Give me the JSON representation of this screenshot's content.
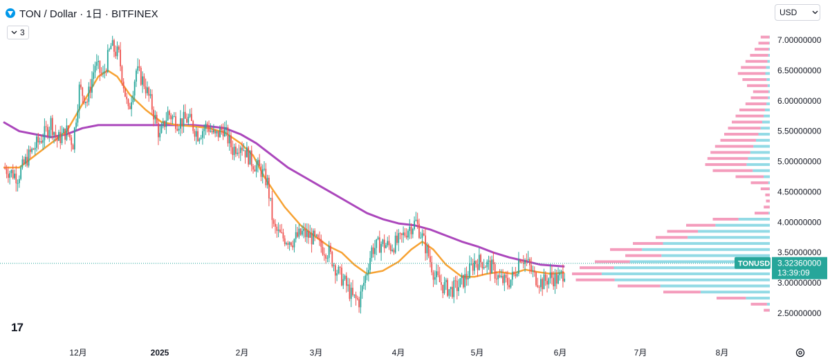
{
  "header": {
    "title": "TON / Dollar · 1日 · BITFINEX",
    "indicator_count": "3",
    "currency": "USD"
  },
  "colors": {
    "up": "#26a69a",
    "down": "#ef5350",
    "ma_fast": "#f7a233",
    "ma_slow": "#ab47bc",
    "vp_up": "#7fd4e0",
    "vp_down": "#f28bb0",
    "price_label_bg": "#26a69a"
  },
  "price_label": {
    "symbol": "TONUSD",
    "price": "3.32360000",
    "countdown": "13:39:09"
  },
  "chart_data": {
    "type": "candlestick",
    "ylim": [
      2.4,
      7.2
    ],
    "y_ticks": [
      "2.50000000",
      "3.00000000",
      "3.50000000",
      "4.00000000",
      "4.50000000",
      "5.00000000",
      "5.50000000",
      "6.00000000",
      "6.50000000",
      "7.00000000"
    ],
    "x_ticks": [
      "12月",
      "2025",
      "2月",
      "3月",
      "4月",
      "5月",
      "6月",
      "7月",
      "8月"
    ],
    "last_price": 3.3236,
    "anchors": [
      [
        0,
        4.9
      ],
      [
        9,
        4.75
      ],
      [
        15,
        5.05
      ],
      [
        20,
        5.25
      ],
      [
        26,
        5.45
      ],
      [
        30,
        5.65
      ],
      [
        34,
        5.35
      ],
      [
        40,
        5.5
      ],
      [
        44,
        5.3
      ],
      [
        48,
        6.2
      ],
      [
        53,
        6.0
      ],
      [
        58,
        6.6
      ],
      [
        63,
        6.4
      ],
      [
        68,
        6.9
      ],
      [
        73,
        6.75
      ],
      [
        79,
        5.8
      ],
      [
        84,
        6.5
      ],
      [
        89,
        6.3
      ],
      [
        94,
        5.9
      ],
      [
        99,
        5.4
      ],
      [
        104,
        5.8
      ],
      [
        110,
        5.65
      ],
      [
        117,
        5.7
      ],
      [
        123,
        5.45
      ],
      [
        129,
        5.6
      ],
      [
        134,
        5.4
      ],
      [
        139,
        5.55
      ],
      [
        145,
        5.2
      ],
      [
        150,
        5.3
      ],
      [
        157,
        5.0
      ],
      [
        163,
        4.85
      ],
      [
        167,
        4.65
      ],
      [
        171,
        3.9
      ],
      [
        176,
        3.75
      ],
      [
        183,
        3.7
      ],
      [
        189,
        3.82
      ],
      [
        195,
        3.75
      ],
      [
        201,
        3.6
      ],
      [
        206,
        3.5
      ],
      [
        211,
        3.2
      ],
      [
        216,
        3.0
      ],
      [
        221,
        2.75
      ],
      [
        225,
        2.7
      ],
      [
        229,
        3.1
      ],
      [
        233,
        3.55
      ],
      [
        239,
        3.65
      ],
      [
        245,
        3.6
      ],
      [
        251,
        3.7
      ],
      [
        256,
        3.9
      ],
      [
        261,
        4.0
      ],
      [
        265,
        3.75
      ],
      [
        269,
        3.45
      ],
      [
        273,
        3.1
      ],
      [
        278,
        2.95
      ],
      [
        283,
        2.88
      ],
      [
        288,
        2.95
      ],
      [
        293,
        3.1
      ],
      [
        298,
        3.35
      ],
      [
        303,
        3.35
      ],
      [
        309,
        3.25
      ],
      [
        314,
        3.05
      ],
      [
        319,
        3.0
      ],
      [
        323,
        3.12
      ],
      [
        327,
        3.45
      ],
      [
        331,
        3.35
      ],
      [
        336,
        3.1
      ],
      [
        341,
        3.0
      ],
      [
        346,
        3.1
      ],
      [
        351,
        3.05
      ],
      [
        355,
        3.2
      ]
    ],
    "ma_fast": [
      [
        0,
        4.9
      ],
      [
        10,
        4.9
      ],
      [
        20,
        5.1
      ],
      [
        30,
        5.3
      ],
      [
        40,
        5.5
      ],
      [
        50,
        5.95
      ],
      [
        60,
        6.4
      ],
      [
        66,
        6.5
      ],
      [
        72,
        6.4
      ],
      [
        80,
        6.1
      ],
      [
        90,
        5.85
      ],
      [
        100,
        5.65
      ],
      [
        110,
        5.6
      ],
      [
        120,
        5.58
      ],
      [
        130,
        5.55
      ],
      [
        140,
        5.48
      ],
      [
        150,
        5.3
      ],
      [
        158,
        5.1
      ],
      [
        165,
        4.75
      ],
      [
        170,
        4.55
      ],
      [
        178,
        4.25
      ],
      [
        188,
        3.95
      ],
      [
        198,
        3.75
      ],
      [
        206,
        3.6
      ],
      [
        214,
        3.5
      ],
      [
        222,
        3.3
      ],
      [
        230,
        3.15
      ],
      [
        240,
        3.2
      ],
      [
        250,
        3.35
      ],
      [
        258,
        3.55
      ],
      [
        265,
        3.68
      ],
      [
        272,
        3.55
      ],
      [
        280,
        3.3
      ],
      [
        290,
        3.1
      ],
      [
        298,
        3.1
      ],
      [
        306,
        3.15
      ],
      [
        314,
        3.18
      ],
      [
        322,
        3.15
      ],
      [
        330,
        3.22
      ],
      [
        338,
        3.18
      ],
      [
        346,
        3.15
      ],
      [
        355,
        3.17
      ]
    ],
    "ma_slow": [
      [
        0,
        5.65
      ],
      [
        10,
        5.5
      ],
      [
        20,
        5.45
      ],
      [
        30,
        5.4
      ],
      [
        40,
        5.45
      ],
      [
        50,
        5.55
      ],
      [
        60,
        5.6
      ],
      [
        70,
        5.6
      ],
      [
        80,
        5.6
      ],
      [
        90,
        5.6
      ],
      [
        100,
        5.6
      ],
      [
        110,
        5.6
      ],
      [
        120,
        5.6
      ],
      [
        130,
        5.58
      ],
      [
        140,
        5.55
      ],
      [
        150,
        5.45
      ],
      [
        160,
        5.3
      ],
      [
        170,
        5.1
      ],
      [
        180,
        4.9
      ],
      [
        190,
        4.75
      ],
      [
        200,
        4.6
      ],
      [
        210,
        4.45
      ],
      [
        220,
        4.3
      ],
      [
        230,
        4.15
      ],
      [
        240,
        4.05
      ],
      [
        250,
        3.98
      ],
      [
        260,
        3.95
      ],
      [
        270,
        3.88
      ],
      [
        280,
        3.78
      ],
      [
        290,
        3.68
      ],
      [
        300,
        3.6
      ],
      [
        310,
        3.5
      ],
      [
        320,
        3.42
      ],
      [
        330,
        3.36
      ],
      [
        340,
        3.3
      ],
      [
        355,
        3.27
      ]
    ],
    "volume_profile": [
      [
        7.05,
        0.12,
        0.04
      ],
      [
        6.95,
        0.15,
        0.05
      ],
      [
        6.85,
        0.2,
        0.07
      ],
      [
        6.75,
        0.26,
        0.08
      ],
      [
        6.65,
        0.32,
        0.1
      ],
      [
        6.55,
        0.38,
        0.13
      ],
      [
        6.45,
        0.42,
        0.14
      ],
      [
        6.35,
        0.36,
        0.12
      ],
      [
        6.25,
        0.3,
        0.1
      ],
      [
        6.15,
        0.22,
        0.08
      ],
      [
        6.05,
        0.25,
        0.1
      ],
      [
        5.95,
        0.32,
        0.14
      ],
      [
        5.85,
        0.4,
        0.16
      ],
      [
        5.75,
        0.45,
        0.18
      ],
      [
        5.65,
        0.5,
        0.2
      ],
      [
        5.55,
        0.55,
        0.22
      ],
      [
        5.45,
        0.6,
        0.25
      ],
      [
        5.35,
        0.65,
        0.28
      ],
      [
        5.25,
        0.72,
        0.3
      ],
      [
        5.15,
        0.78,
        0.33
      ],
      [
        5.05,
        0.82,
        0.35
      ],
      [
        4.95,
        0.85,
        0.36
      ],
      [
        4.85,
        0.75,
        0.3
      ],
      [
        4.75,
        0.45,
        0.18
      ],
      [
        4.65,
        0.25,
        0.08
      ],
      [
        4.55,
        0.12,
        0.04
      ],
      [
        4.45,
        0.06,
        0.02
      ],
      [
        4.35,
        0.05,
        0.02
      ],
      [
        4.25,
        0.08,
        0.03
      ],
      [
        4.15,
        0.2,
        0.08
      ],
      [
        4.05,
        0.75,
        0.55
      ],
      [
        3.95,
        1.1,
        0.65
      ],
      [
        3.85,
        1.35,
        0.7
      ],
      [
        3.75,
        1.5,
        0.72
      ],
      [
        3.65,
        1.8,
        0.78
      ],
      [
        3.55,
        2.1,
        0.8
      ],
      [
        3.45,
        1.9,
        0.75
      ],
      [
        3.35,
        2.3,
        0.8
      ],
      [
        3.25,
        2.5,
        0.82
      ],
      [
        3.15,
        2.6,
        0.85
      ],
      [
        3.05,
        2.55,
        0.8
      ],
      [
        2.95,
        2.0,
        0.72
      ],
      [
        2.85,
        1.4,
        0.65
      ],
      [
        2.75,
        0.7,
        0.45
      ],
      [
        2.65,
        0.25,
        0.15
      ],
      [
        2.55,
        0.08,
        0.05
      ]
    ]
  }
}
